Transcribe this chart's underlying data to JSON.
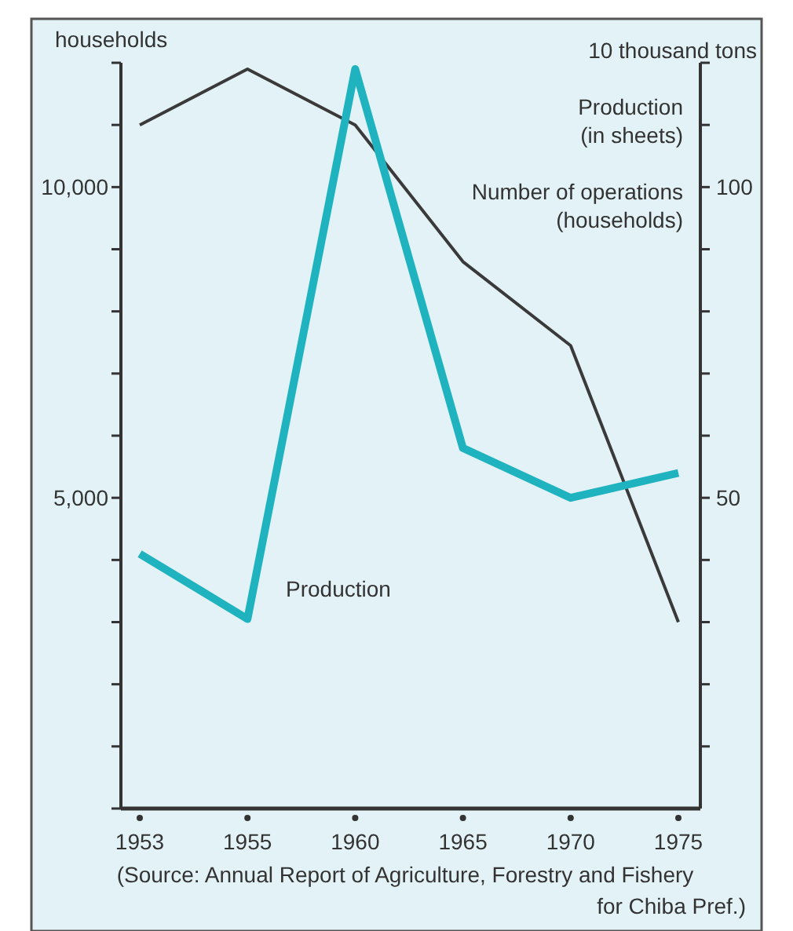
{
  "chart_data": {
    "type": "line",
    "categories": [
      "1953",
      "1955",
      "1960",
      "1965",
      "1970",
      "1975"
    ],
    "ylabel": "households",
    "y2label": "10 thousand tons",
    "ylim": [
      0,
      12000
    ],
    "yticks": [
      {
        "value": 0,
        "label": null
      },
      {
        "value": 1000,
        "label": null
      },
      {
        "value": 2000,
        "label": null
      },
      {
        "value": 3000,
        "label": null
      },
      {
        "value": 4000,
        "label": null
      },
      {
        "value": 5000,
        "label": "5,000"
      },
      {
        "value": 6000,
        "label": null
      },
      {
        "value": 7000,
        "label": null
      },
      {
        "value": 8000,
        "label": null
      },
      {
        "value": 9000,
        "label": null
      },
      {
        "value": 10000,
        "label": "10,000"
      },
      {
        "value": 11000,
        "label": null
      },
      {
        "value": 12000,
        "label": null
      }
    ],
    "y2lim": [
      0,
      120
    ],
    "y2ticks": [
      {
        "value": 10,
        "label": null
      },
      {
        "value": 20,
        "label": null
      },
      {
        "value": 30,
        "label": null
      },
      {
        "value": 40,
        "label": null
      },
      50,
      {
        "value": 60,
        "label": null
      },
      {
        "value": 70,
        "label": null
      },
      {
        "value": 80,
        "label": null
      },
      {
        "value": 90,
        "label": null
      },
      100,
      {
        "value": 110,
        "label": null
      },
      {
        "value": 120,
        "label": null
      }
    ],
    "series": [
      {
        "name": "Number of operations (households)",
        "color": "#3a3a3a",
        "values": [
          11000,
          11900,
          11000,
          8800,
          7450,
          3000
        ]
      },
      {
        "name": "Production",
        "color": "#1fb3c0",
        "axis": "y2",
        "values": [
          41,
          30.5,
          119,
          58,
          50,
          54
        ]
      }
    ],
    "annotations": [
      "Production (in sheets)",
      "(Source: Annual Report of Agriculture, Forestry and Fishery for Chiba Pref.)"
    ],
    "grid": false
  }
}
